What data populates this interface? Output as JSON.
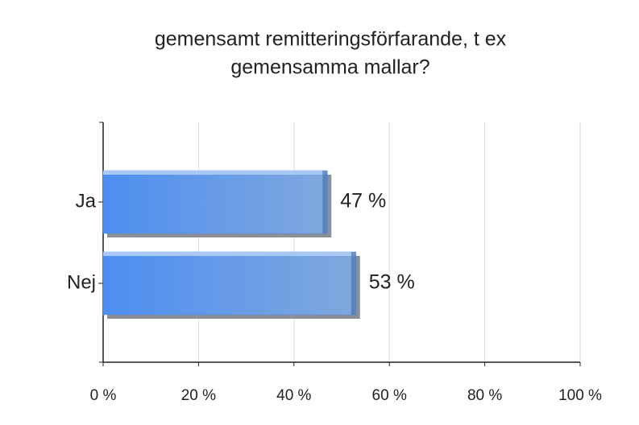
{
  "chart_data": {
    "type": "hbar",
    "title": [
      "gemensamt remitteringsförfarande, t ex",
      "gemensamma mallar?"
    ],
    "categories": [
      "Ja",
      "Nej"
    ],
    "values": [
      47,
      53
    ],
    "value_labels": [
      "47 %",
      "53 %"
    ],
    "color": "#4f8fe6",
    "xlim": [
      0,
      100
    ],
    "xticks": [
      {
        "value": 0,
        "label": "0 %"
      },
      {
        "value": 20,
        "label": "20 %"
      },
      {
        "value": 40,
        "label": "40 %"
      },
      {
        "value": 60,
        "label": "60 %"
      },
      {
        "value": 80,
        "label": "80 %"
      },
      {
        "value": 100,
        "label": "100 %"
      }
    ],
    "grid": true
  }
}
